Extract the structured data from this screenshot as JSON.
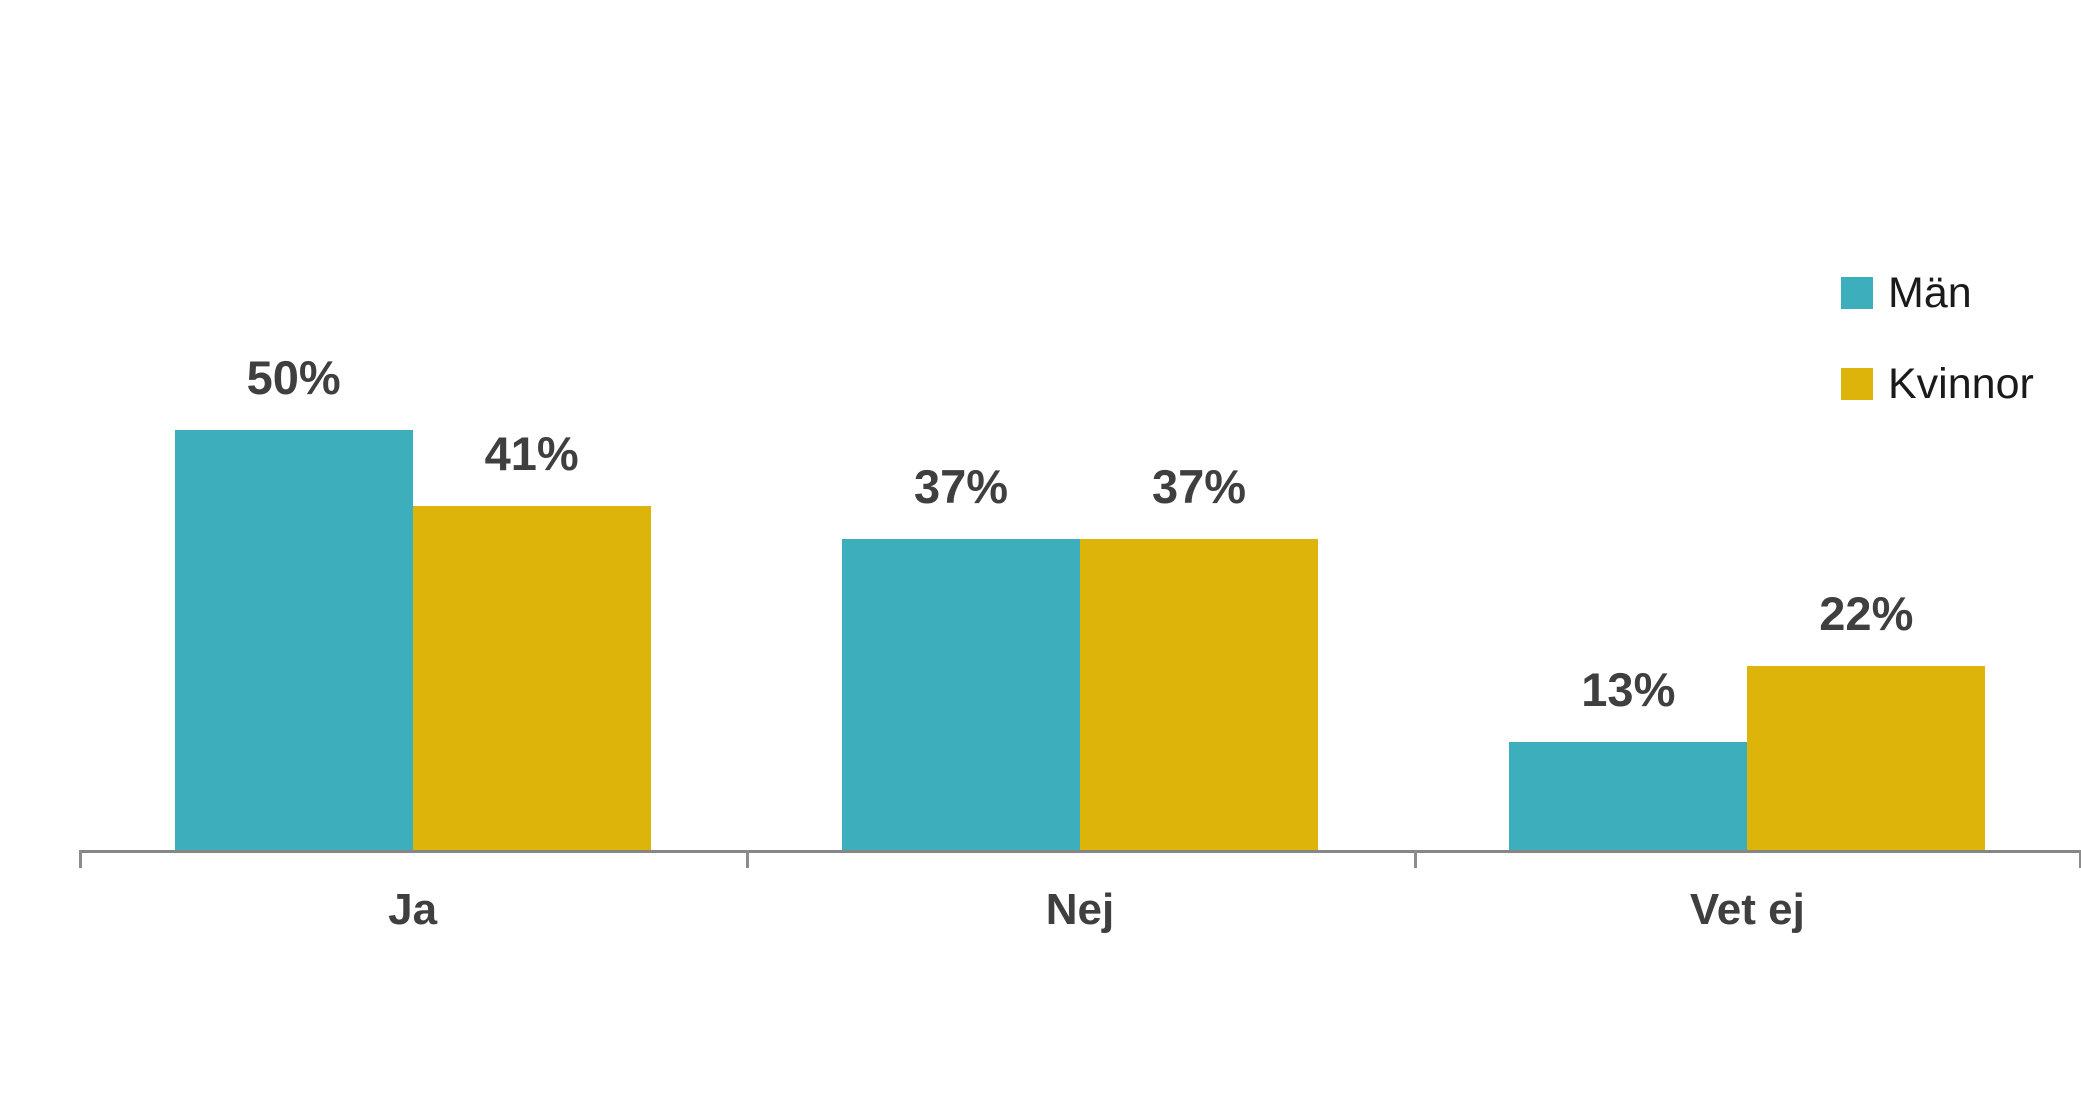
{
  "chart_data": {
    "type": "bar",
    "categories": [
      "Ja",
      "Nej",
      "Vet ej"
    ],
    "series": [
      {
        "name": "Män",
        "color": "#3DAEBC",
        "values": [
          50,
          37,
          13
        ],
        "labels": [
          "50%",
          "37%",
          "13%"
        ]
      },
      {
        "name": "Kvinnor",
        "color": "#DDB40A",
        "values": [
          41,
          37,
          22
        ],
        "labels": [
          "41%",
          "37%",
          "22%"
        ]
      }
    ],
    "value_suffix": "%",
    "title": "",
    "xlabel": "",
    "ylabel": "",
    "ylim": [
      0,
      60
    ],
    "grid": false,
    "legend_position": "top-right",
    "data_labels_shown": true
  },
  "colors": {
    "axis": "#868686",
    "tick": "#8C8C8C",
    "data_label": "#3F3F3F",
    "category_label": "#3F3F3F",
    "legend_text": "#1A1A1A",
    "background": "#FFFFFF"
  }
}
